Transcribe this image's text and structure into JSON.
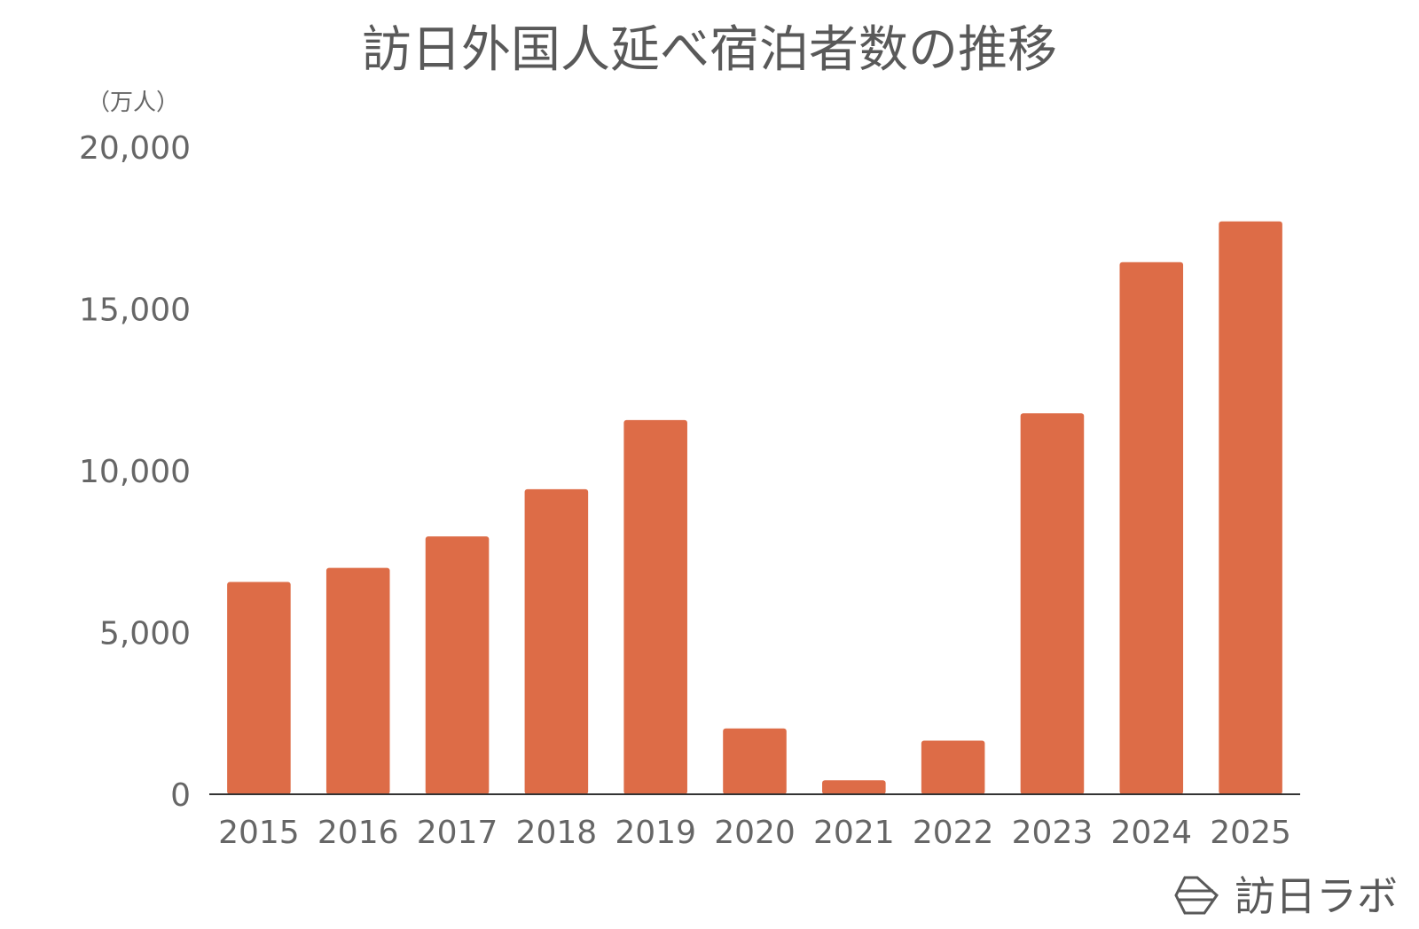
{
  "chart_data": {
    "type": "bar",
    "title": "訪日外国人延べ宿泊者数の推移",
    "unit_label": "（万人）",
    "categories": [
      "2015",
      "2016",
      "2017",
      "2018",
      "2019",
      "2020",
      "2021",
      "2022",
      "2023",
      "2024",
      "2025"
    ],
    "values": [
      6561,
      6995,
      7969,
      9428,
      11566,
      2035,
      433,
      1658,
      11775,
      16446,
      17707
    ],
    "ylim": [
      0,
      20000
    ],
    "yticks": [
      0,
      5000,
      10000,
      15000,
      20000
    ],
    "ytick_labels": [
      "0",
      "5,000",
      "10,000",
      "15,000",
      "20,000"
    ],
    "grid": false,
    "legend": "none",
    "bar_color": "#dd6c47"
  },
  "brand": {
    "logo_text": "訪日ラボ",
    "logo_icon": "hexagon-logo-icon"
  }
}
